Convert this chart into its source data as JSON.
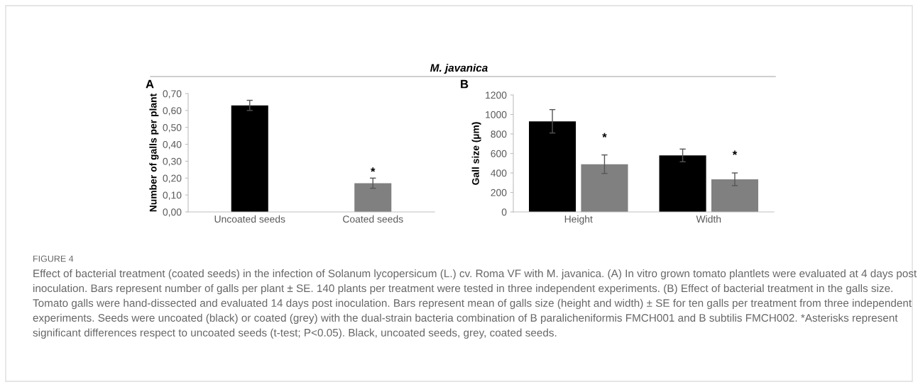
{
  "chart_data": [
    {
      "type": "bar",
      "title": "M. javanica",
      "ylabel": "Number of galls per plant",
      "categories": [
        "Uncoated seeds",
        "Coated seeds"
      ],
      "values": [
        0.63,
        0.17
      ],
      "colors": [
        "#000000",
        "#808080"
      ],
      "errors": [
        0.03,
        0.03
      ],
      "ylim": [
        0,
        0.7
      ],
      "yticks": [
        {
          "value": 0,
          "label": "0,00"
        },
        {
          "value": 0.1,
          "label": "0,10"
        },
        {
          "value": 0.2,
          "label": "0,20"
        },
        {
          "value": 0.3,
          "label": "0,30"
        },
        {
          "value": 0.4,
          "label": "0,40"
        },
        {
          "value": 0.5,
          "label": "0,50"
        },
        {
          "value": 0.6,
          "label": "0,60"
        },
        {
          "value": 0.7,
          "label": "0,70"
        }
      ],
      "grid": false,
      "annotations": [
        "A",
        {
          "text": "*",
          "x": "Coated seeds",
          "y": 0.2
        },
        "FIGURE 4",
        "Effect of bacterial treatment (coated seeds) in the infection of Solanum lycopersicum (L.) cv. Roma VF with M. javanica. (A) In vitro grown tomato plantlets were evaluated at 4 days post inoculation. Bars represent number of galls per plant ± SE. 140 plants per treatment were tested in three independent experiments. (B) Effect of bacterial treatment in the galls size. Tomato galls were hand-dissected and evaluated 14 days post inoculation. Bars represent mean of galls size (height and width) ± SE for ten galls per treatment from three independent experiments. Seeds were uncoated (black) or coated (grey) with the dual-strain bacteria combination of B paralicheniformis FMCH001 and B subtilis FMCH002. *Asterisks represent significant differences respect to uncoated seeds (t-test; P<0.05). Black, uncoated seeds, grey, coated seeds."
      ]
    },
    {
      "type": "bar",
      "ylabel": "Gall size (µm)",
      "categories": [
        "Height",
        "Width"
      ],
      "series": [
        {
          "color": "#000000",
          "values": [
            930,
            580
          ],
          "errors": [
            120,
            65
          ]
        },
        {
          "color": "#808080",
          "values": [
            490,
            335
          ],
          "errors": [
            95,
            65
          ]
        }
      ],
      "ylim": [
        0,
        1200
      ],
      "yticks": [
        0,
        200,
        400,
        600,
        800,
        1000,
        1200
      ],
      "grid": false,
      "annotations": [
        "B",
        {
          "text": "*",
          "x": "Height",
          "y": 700
        },
        {
          "text": "*",
          "x": "Width",
          "y": 520
        }
      ]
    }
  ]
}
